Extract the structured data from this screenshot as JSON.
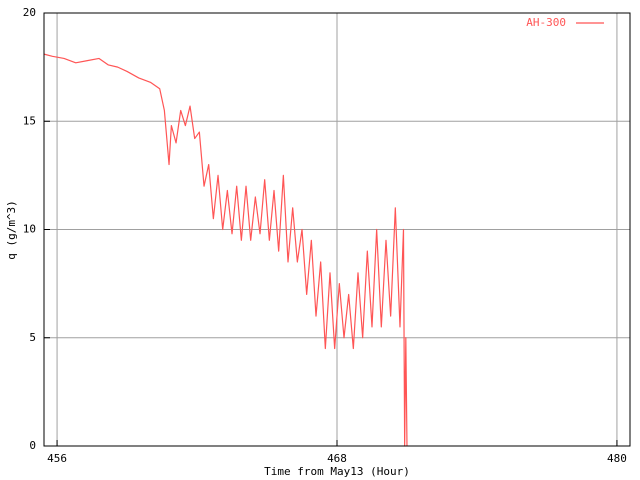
{
  "chart_data": {
    "type": "line",
    "x_label": "Time from May13 (Hour)",
    "y_label": "q (g/m^3)",
    "x": [
      455.44,
      455.8,
      456.3,
      456.8,
      457.3,
      457.8,
      458.2,
      458.6,
      459.0,
      459.5,
      460.0,
      460.4,
      460.6,
      460.8,
      460.9,
      461.1,
      461.3,
      461.5,
      461.7,
      461.9,
      462.1,
      462.3,
      462.5,
      462.7,
      462.9,
      463.1,
      463.3,
      463.5,
      463.7,
      463.9,
      464.1,
      464.3,
      464.5,
      464.7,
      464.9,
      465.1,
      465.3,
      465.5,
      465.7,
      465.9,
      466.1,
      466.3,
      466.5,
      466.7,
      466.9,
      467.1,
      467.3,
      467.5,
      467.7,
      467.9,
      468.1,
      468.3,
      468.5,
      468.7,
      468.9,
      469.1,
      469.3,
      469.5,
      469.7,
      469.9,
      470.1,
      470.3,
      470.5,
      470.7,
      470.85,
      470.9,
      470.95,
      471.0
    ],
    "series": [
      {
        "name": "AH-300",
        "color": "#ff5555",
        "values": [
          18.1,
          18.0,
          17.9,
          17.7,
          17.8,
          17.9,
          17.6,
          17.5,
          17.3,
          17.0,
          16.8,
          16.5,
          15.5,
          13.0,
          14.8,
          14.0,
          15.5,
          14.8,
          15.7,
          14.2,
          14.5,
          12.0,
          13.0,
          10.5,
          12.5,
          10.0,
          11.8,
          9.8,
          12.0,
          9.5,
          12.0,
          9.5,
          11.5,
          9.8,
          12.3,
          9.5,
          11.8,
          9.0,
          12.5,
          8.5,
          11.0,
          8.5,
          10.0,
          7.0,
          9.5,
          6.0,
          8.5,
          4.5,
          8.0,
          4.5,
          7.5,
          5.0,
          7.0,
          4.5,
          8.0,
          5.0,
          9.0,
          5.5,
          10.0,
          5.5,
          9.5,
          6.0,
          11.0,
          5.5,
          10.0,
          0,
          5,
          0
        ]
      }
    ],
    "xlim": [
      455.44,
      480.56
    ],
    "xticks": [
      456,
      468,
      480
    ],
    "ylim": [
      0,
      20
    ],
    "yticks": [
      0,
      5,
      10,
      15,
      20
    ],
    "grid": true,
    "legend": "top-right"
  }
}
